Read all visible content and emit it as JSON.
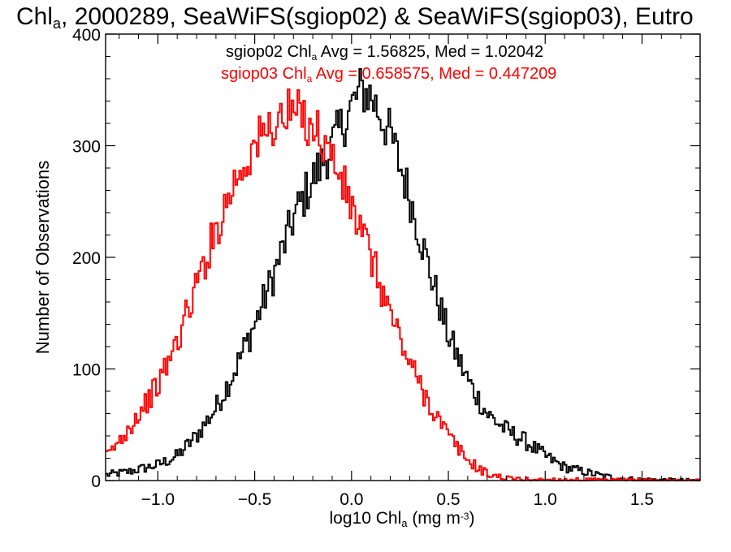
{
  "chart_data": {
    "type": "histogram",
    "title": {
      "main": "Chl",
      "sub": "a",
      "rest": ", 2000289, SeaWiFS(sgiop02) & SeaWiFS(sgiop03), Eutro"
    },
    "xlabel": {
      "main": "log10 Chl",
      "sub": "a",
      "mid": " (mg m",
      "sup": "-3",
      "end": ")"
    },
    "ylabel": "Number of Observations",
    "xlim": [
      -1.27,
      1.8
    ],
    "ylim": [
      0,
      400
    ],
    "xticks": [
      -1.0,
      -0.5,
      0.0,
      0.5,
      1.0,
      1.5
    ],
    "xtick_labels": [
      "−1.0",
      "−0.5",
      "0.0",
      "0.5",
      "1.0",
      "1.5"
    ],
    "yticks": [
      0,
      100,
      200,
      300,
      400
    ],
    "ytick_labels": [
      "0",
      "100",
      "200",
      "300",
      "400"
    ],
    "series": [
      {
        "name": "sgiop02",
        "color": "#000000",
        "stats_label": {
          "pre": "sgiop02 Chl",
          "sub": "a",
          "post": " Avg = 1.56825, Med = 1.02042"
        },
        "anchors": [
          [
            -1.27,
            5
          ],
          [
            -1.15,
            8
          ],
          [
            -1.0,
            14
          ],
          [
            -0.9,
            22
          ],
          [
            -0.8,
            40
          ],
          [
            -0.7,
            65
          ],
          [
            -0.6,
            100
          ],
          [
            -0.5,
            140
          ],
          [
            -0.4,
            185
          ],
          [
            -0.3,
            235
          ],
          [
            -0.2,
            270
          ],
          [
            -0.1,
            300
          ],
          [
            0.0,
            335
          ],
          [
            0.05,
            350
          ],
          [
            0.1,
            345
          ],
          [
            0.2,
            310
          ],
          [
            0.3,
            255
          ],
          [
            0.4,
            190
          ],
          [
            0.5,
            130
          ],
          [
            0.6,
            90
          ],
          [
            0.7,
            60
          ],
          [
            0.8,
            45
          ],
          [
            0.9,
            35
          ],
          [
            1.0,
            22
          ],
          [
            1.1,
            12
          ],
          [
            1.2,
            8
          ],
          [
            1.3,
            4
          ],
          [
            1.4,
            2
          ],
          [
            1.5,
            1
          ],
          [
            1.8,
            0
          ]
        ]
      },
      {
        "name": "sgiop03",
        "color": "#ff0000",
        "stats_label": {
          "pre": "sgiop03 Chl",
          "sub": "a",
          "post": " Avg = 0.658575, Med = 0.447209"
        },
        "anchors": [
          [
            -1.27,
            20
          ],
          [
            -1.2,
            35
          ],
          [
            -1.1,
            60
          ],
          [
            -1.0,
            85
          ],
          [
            -0.9,
            125
          ],
          [
            -0.8,
            175
          ],
          [
            -0.7,
            225
          ],
          [
            -0.6,
            270
          ],
          [
            -0.5,
            300
          ],
          [
            -0.4,
            320
          ],
          [
            -0.3,
            330
          ],
          [
            -0.2,
            320
          ],
          [
            -0.1,
            290
          ],
          [
            0.0,
            245
          ],
          [
            0.1,
            200
          ],
          [
            0.2,
            150
          ],
          [
            0.3,
            105
          ],
          [
            0.4,
            70
          ],
          [
            0.5,
            40
          ],
          [
            0.6,
            18
          ],
          [
            0.7,
            6
          ],
          [
            0.8,
            2
          ],
          [
            0.9,
            1
          ],
          [
            1.8,
            0
          ]
        ]
      }
    ]
  }
}
